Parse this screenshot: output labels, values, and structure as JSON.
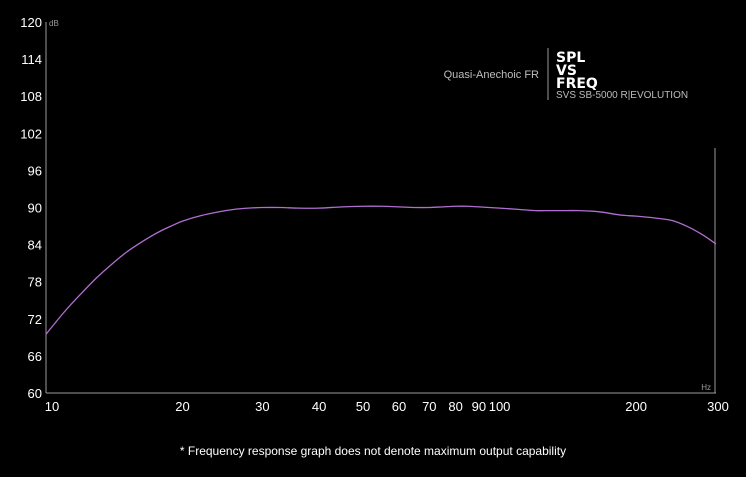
{
  "chart_data": {
    "type": "line",
    "x_scale": "log",
    "xlim": [
      10,
      300
    ],
    "ylim": [
      60,
      120
    ],
    "x_ticks": [
      10,
      20,
      30,
      40,
      50,
      60,
      70,
      80,
      90,
      100,
      200,
      300
    ],
    "y_ticks": [
      60,
      66,
      72,
      78,
      84,
      90,
      96,
      102,
      108,
      114,
      120
    ],
    "x_unit": "Hz",
    "y_unit": "dB",
    "series": [
      {
        "name": "Quasi-Anechoic FR",
        "color": "#b06fd0",
        "x": [
          10,
          11,
          12,
          13,
          14,
          15,
          16,
          17,
          18,
          19,
          20,
          22,
          24,
          26,
          28,
          30,
          33,
          36,
          40,
          45,
          50,
          55,
          60,
          65,
          70,
          75,
          80,
          85,
          90,
          100,
          110,
          120,
          130,
          140,
          150,
          160,
          170,
          180,
          190,
          200,
          220,
          240,
          260,
          280,
          300
        ],
        "y": [
          69.5,
          73.2,
          76.2,
          78.8,
          80.9,
          82.7,
          84.1,
          85.3,
          86.3,
          87.1,
          87.8,
          88.7,
          89.3,
          89.7,
          89.9,
          90.0,
          90.0,
          89.9,
          89.9,
          90.1,
          90.2,
          90.2,
          90.1,
          90.0,
          90.0,
          90.1,
          90.2,
          90.2,
          90.1,
          89.9,
          89.7,
          89.5,
          89.5,
          89.5,
          89.5,
          89.4,
          89.2,
          88.9,
          88.7,
          88.6,
          88.3,
          87.9,
          86.9,
          85.6,
          84.1
        ]
      }
    ],
    "legend": {
      "label": "Quasi-Anechoic FR",
      "placement": "top-right"
    }
  },
  "branding": {
    "line1": "SPL",
    "line2": "VS",
    "line3": "FREQ",
    "product": "SVS SB-5000 R|EVOLUTION"
  },
  "footnote": "* Frequency response graph does not denote maximum output capability"
}
